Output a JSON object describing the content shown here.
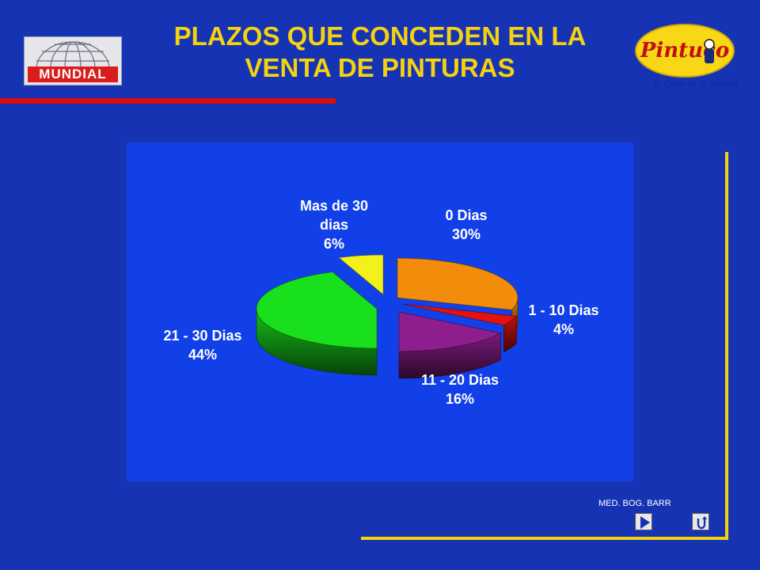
{
  "header": {
    "title_line1": "PLAZOS QUE CONCEDEN EN LA",
    "title_line2": "VENTA DE PINTURAS"
  },
  "logos": {
    "left": {
      "wordmark": "MUNDIAL",
      "icon": "globe-icon"
    },
    "right": {
      "wordmark": "Pintuco",
      "tagline": "El Color de la Calidad",
      "icon": "painter-icon"
    }
  },
  "footer": {
    "credit": "MED. BOG. BARR",
    "next_icon": "play-arrow-icon",
    "return_icon": "return-arrow-icon"
  },
  "colors": {
    "background": "#1633b4",
    "chart_background": "#1240e8",
    "title": "#f5d20f",
    "rule": "#d90d0d",
    "frame": "#f5d20f"
  },
  "chart_data": {
    "type": "pie",
    "style": "3d-exploded",
    "title": "",
    "slices": [
      {
        "label": "0 Dias",
        "value": 30,
        "display": "30%",
        "color": "#f28c0a"
      },
      {
        "label": "1 - 10 Dias",
        "value": 4,
        "display": "4%",
        "color": "#e01212"
      },
      {
        "label": "11 - 20 Dias",
        "value": 16,
        "display": "16%",
        "color": "#8e1e8e"
      },
      {
        "label": "21 - 30 Dias",
        "value": 44,
        "display": "44%",
        "color": "#19e01d"
      },
      {
        "label": "Mas de 30 dias",
        "value": 6,
        "display": "6%",
        "color": "#f2f21a"
      }
    ],
    "label_lines": {
      "mas30": [
        "Mas de 30",
        "dias"
      ]
    }
  }
}
